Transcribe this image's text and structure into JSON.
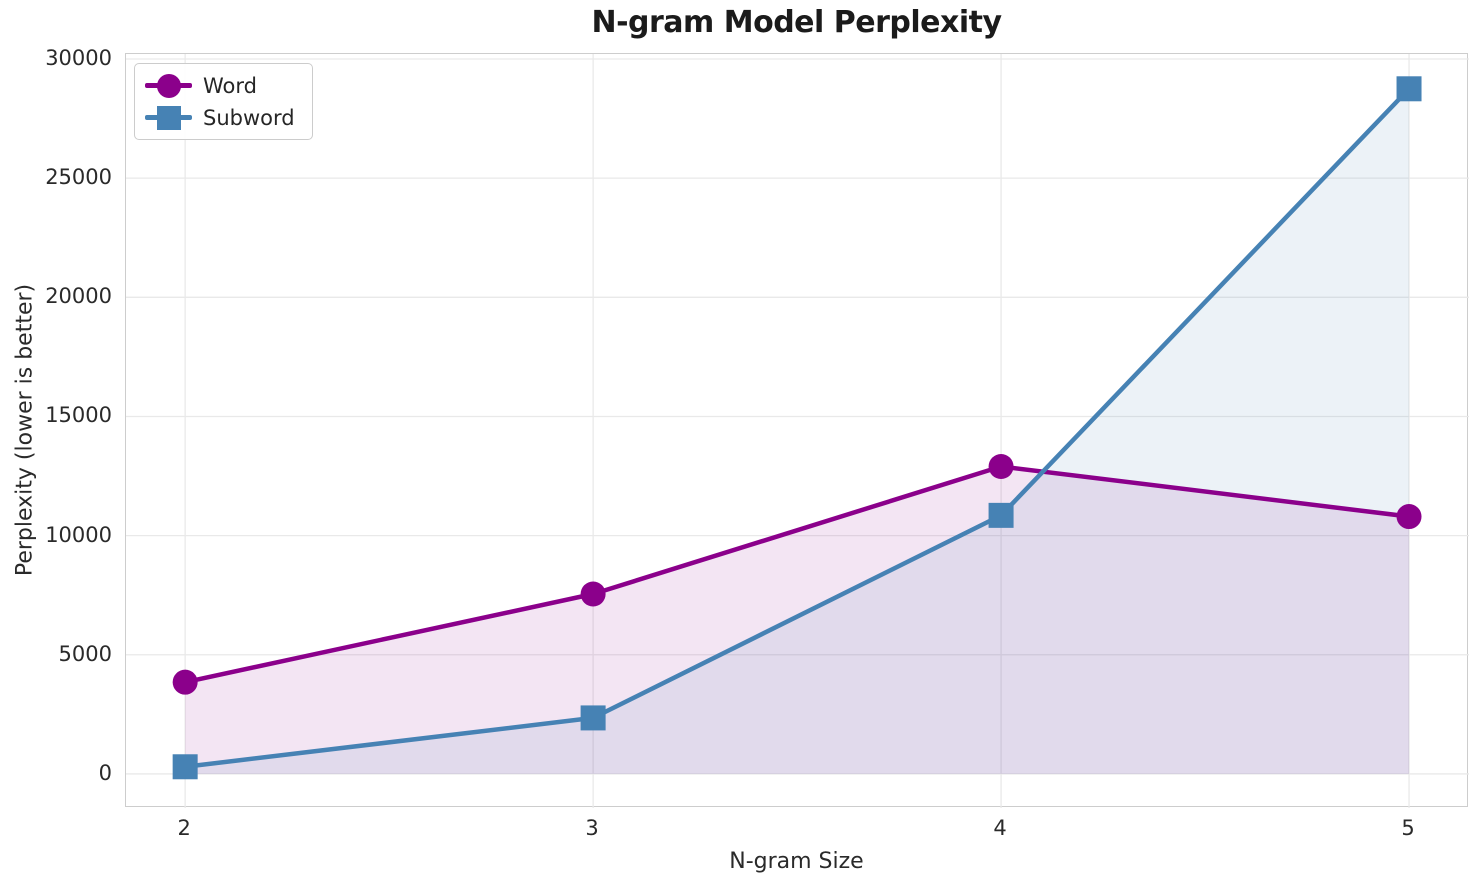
{
  "chart_data": {
    "type": "line",
    "title": "N-gram Model Perplexity",
    "xlabel": "N-gram Size",
    "ylabel": "Perplexity (lower is better)",
    "x": [
      2,
      3,
      4,
      5
    ],
    "series": [
      {
        "name": "Word",
        "marker": "circle",
        "color": "#8B008B",
        "values": [
          3850,
          7550,
          12900,
          10800
        ]
      },
      {
        "name": "Subword",
        "marker": "square",
        "color": "#4682B4",
        "values": [
          300,
          2350,
          10850,
          28750
        ]
      }
    ],
    "xticks": [
      "2",
      "3",
      "4",
      "5"
    ],
    "xtick_values": [
      2,
      3,
      4,
      5
    ],
    "yticks": [
      "0",
      "5000",
      "10000",
      "15000",
      "20000",
      "25000",
      "30000"
    ],
    "ytick_values": [
      0,
      5000,
      10000,
      15000,
      20000,
      25000,
      30000
    ],
    "xlim": [
      1.855,
      5.147
    ],
    "ylim": [
      -1430,
      30210
    ],
    "grid": true,
    "legend_position": "upper left",
    "area_fill": true,
    "area_fill_opacity": 0.1,
    "line_width": 4.5,
    "marker_size": 25,
    "colors": {
      "grid": "#e9e9e9",
      "spine": "#cdcdcd",
      "tick_text": "#2a2a2a",
      "title_text": "#1b1b1b",
      "background": "#ffffff"
    }
  }
}
